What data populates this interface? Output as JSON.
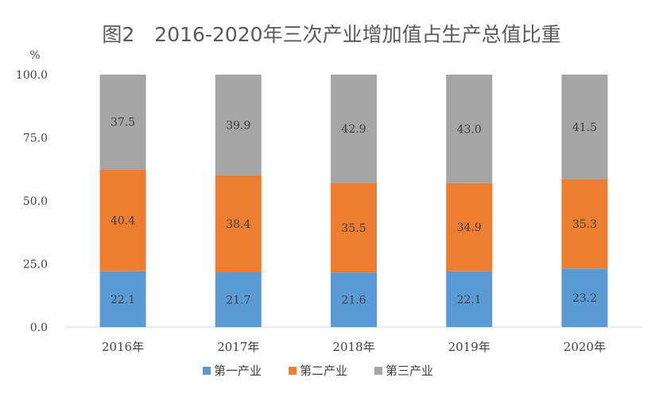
{
  "chart_data": {
    "type": "bar",
    "stacked": true,
    "title": "图2　2016-2020年三次产业增加值占生产总值比重",
    "ylabel": "%",
    "ylim": [
      0,
      100
    ],
    "yticks": [
      "0.0",
      "25.0",
      "50.0",
      "75.0",
      "100.0"
    ],
    "ytick_values": [
      0,
      25,
      50,
      75,
      100
    ],
    "categories": [
      "2016年",
      "2017年",
      "2018年",
      "2019年",
      "2020年"
    ],
    "series": [
      {
        "name": "第一产业",
        "color": "#5b9bd5",
        "values": [
          22.1,
          21.7,
          21.6,
          22.1,
          23.2
        ],
        "labels": [
          "22.1",
          "21.7",
          "21.6",
          "22.1",
          "23.2"
        ]
      },
      {
        "name": "第二产业",
        "color": "#ed7d31",
        "values": [
          40.4,
          38.4,
          35.5,
          34.9,
          35.3
        ],
        "labels": [
          "40.4",
          "38.4",
          "35.5",
          "34.9",
          "35.3"
        ]
      },
      {
        "name": "第三产业",
        "color": "#a5a5a5",
        "values": [
          37.5,
          39.9,
          42.9,
          43.0,
          41.5
        ],
        "labels": [
          "37.5",
          "39.9",
          "42.9",
          "43.0",
          "41.5"
        ]
      }
    ],
    "legend": "bottom",
    "grid": false
  }
}
